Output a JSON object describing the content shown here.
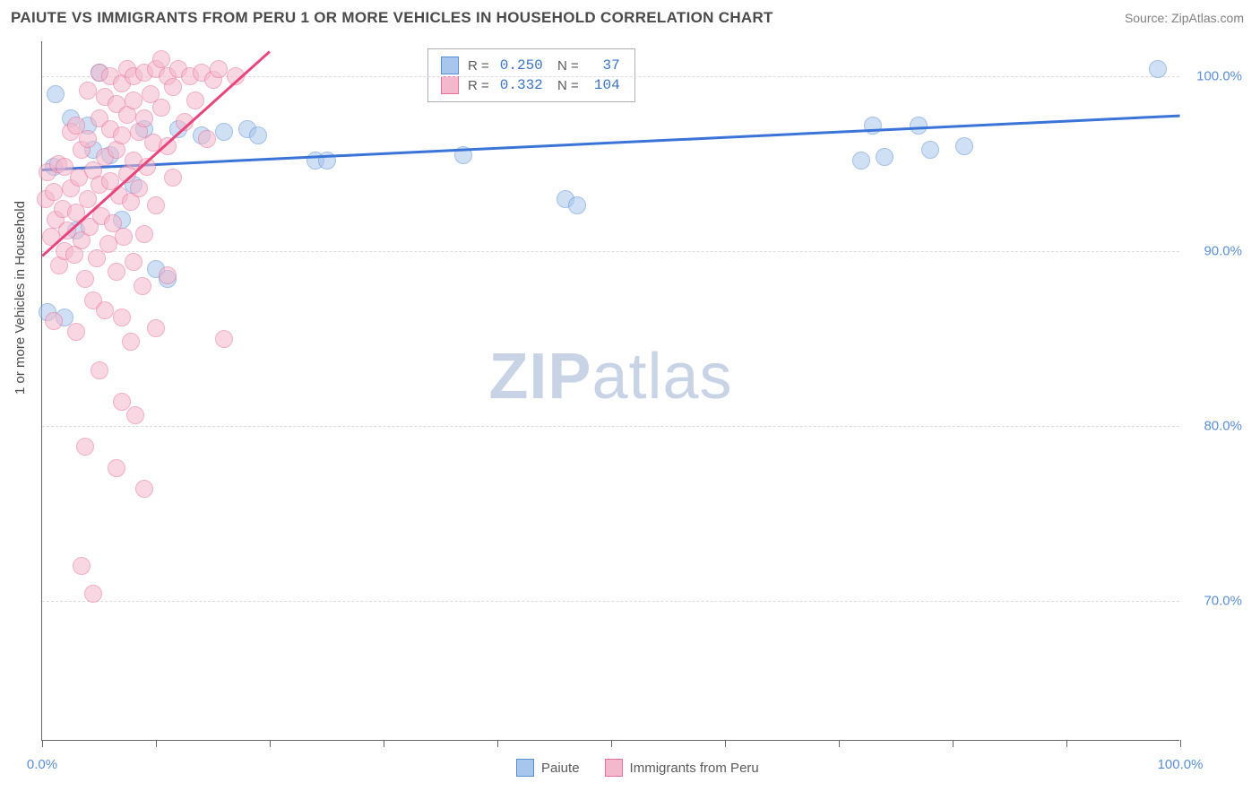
{
  "title": "PAIUTE VS IMMIGRANTS FROM PERU 1 OR MORE VEHICLES IN HOUSEHOLD CORRELATION CHART",
  "source": "Source: ZipAtlas.com",
  "watermark_prefix": "ZIP",
  "watermark_suffix": "atlas",
  "chart": {
    "type": "scatter",
    "ylabel": "1 or more Vehicles in Household",
    "background_color": "#ffffff",
    "grid_color": "#dcdcdc",
    "axis_color": "#666666",
    "xlim": [
      0,
      100
    ],
    "ylim": [
      62,
      102
    ],
    "ytick_positions": [
      70,
      80,
      90,
      100
    ],
    "ytick_labels": [
      "70.0%",
      "80.0%",
      "90.0%",
      "100.0%"
    ],
    "xtick_positions": [
      0,
      10,
      20,
      30,
      40,
      50,
      60,
      70,
      80,
      90,
      100
    ],
    "xtick_labels_shown": {
      "0": "0.0%",
      "100": "100.0%"
    },
    "marker_radius": 10,
    "marker_stroke_width": 1.8,
    "series": [
      {
        "name": "Paiute",
        "fill_color": "#a8c6ec",
        "stroke_color": "#5a8ed6",
        "fill_opacity": 0.55,
        "trend_color": "#3b74d8",
        "trend_width": 2.5,
        "stats": {
          "R": "0.250",
          "N": "37"
        },
        "trend": {
          "x1": 0,
          "y1": 94.7,
          "x2": 100,
          "y2": 97.8
        },
        "points": [
          [
            0.5,
            86.5
          ],
          [
            1,
            94.8
          ],
          [
            1.2,
            99.0
          ],
          [
            2,
            86.2
          ],
          [
            2.5,
            97.6
          ],
          [
            3,
            91.2
          ],
          [
            4,
            97.2
          ],
          [
            4.5,
            95.8
          ],
          [
            5,
            100.2
          ],
          [
            6,
            95.5
          ],
          [
            7,
            91.8
          ],
          [
            8,
            93.8
          ],
          [
            9,
            97.0
          ],
          [
            10,
            89.0
          ],
          [
            11,
            88.4
          ],
          [
            12,
            97.0
          ],
          [
            14,
            96.6
          ],
          [
            16,
            96.8
          ],
          [
            18,
            97.0
          ],
          [
            19,
            96.6
          ],
          [
            24,
            95.2
          ],
          [
            25,
            95.2
          ],
          [
            37,
            95.5
          ],
          [
            46,
            93.0
          ],
          [
            47,
            92.6
          ],
          [
            72,
            95.2
          ],
          [
            73,
            97.2
          ],
          [
            74,
            95.4
          ],
          [
            77,
            97.2
          ],
          [
            78,
            95.8
          ],
          [
            81,
            96.0
          ],
          [
            98,
            100.4
          ]
        ]
      },
      {
        "name": "Immigrants from Peru",
        "fill_color": "#f4b8cc",
        "stroke_color": "#e86f9a",
        "fill_opacity": 0.55,
        "trend_color": "#e8457a",
        "trend_width": 2.5,
        "stats": {
          "R": "0.332",
          "N": "104"
        },
        "trend": {
          "x1": 0,
          "y1": 89.8,
          "x2": 20,
          "y2": 101.5
        },
        "points": [
          [
            0.3,
            93.0
          ],
          [
            0.5,
            94.5
          ],
          [
            0.8,
            90.8
          ],
          [
            1,
            93.4
          ],
          [
            1,
            86.0
          ],
          [
            1.2,
            91.8
          ],
          [
            1.4,
            95.0
          ],
          [
            1.5,
            89.2
          ],
          [
            1.8,
            92.4
          ],
          [
            2,
            90.0
          ],
          [
            2,
            94.8
          ],
          [
            2.2,
            91.2
          ],
          [
            2.5,
            93.6
          ],
          [
            2.5,
            96.8
          ],
          [
            2.8,
            89.8
          ],
          [
            3,
            85.4
          ],
          [
            3,
            92.2
          ],
          [
            3,
            97.2
          ],
          [
            3.2,
            94.2
          ],
          [
            3.5,
            90.6
          ],
          [
            3.5,
            95.8
          ],
          [
            3.8,
            88.4
          ],
          [
            3.8,
            78.8
          ],
          [
            4,
            93.0
          ],
          [
            4,
            96.4
          ],
          [
            4,
            99.2
          ],
          [
            4.2,
            91.4
          ],
          [
            4.5,
            87.2
          ],
          [
            4.5,
            94.6
          ],
          [
            4.8,
            89.6
          ],
          [
            5,
            83.2
          ],
          [
            5,
            93.8
          ],
          [
            5,
            97.6
          ],
          [
            5,
            100.2
          ],
          [
            5.2,
            92.0
          ],
          [
            5.5,
            86.6
          ],
          [
            5.5,
            95.4
          ],
          [
            5.5,
            98.8
          ],
          [
            5.8,
            90.4
          ],
          [
            6,
            94.0
          ],
          [
            6,
            97.0
          ],
          [
            6,
            100.0
          ],
          [
            6.2,
            91.6
          ],
          [
            6.5,
            88.8
          ],
          [
            6.5,
            95.8
          ],
          [
            6.5,
            98.4
          ],
          [
            6.5,
            77.6
          ],
          [
            6.8,
            93.2
          ],
          [
            7,
            86.2
          ],
          [
            7,
            96.6
          ],
          [
            7,
            99.6
          ],
          [
            7,
            81.4
          ],
          [
            7.2,
            90.8
          ],
          [
            7.5,
            94.4
          ],
          [
            7.5,
            97.8
          ],
          [
            7.5,
            100.4
          ],
          [
            7.8,
            84.8
          ],
          [
            7.8,
            92.8
          ],
          [
            8,
            89.4
          ],
          [
            8,
            95.2
          ],
          [
            8,
            98.6
          ],
          [
            8,
            100.0
          ],
          [
            8.2,
            80.6
          ],
          [
            8.5,
            93.6
          ],
          [
            8.5,
            96.8
          ],
          [
            8.8,
            88.0
          ],
          [
            9,
            76.4
          ],
          [
            9,
            91.0
          ],
          [
            9,
            97.6
          ],
          [
            9,
            100.2
          ],
          [
            9.2,
            94.8
          ],
          [
            9.5,
            99.0
          ],
          [
            9.8,
            96.2
          ],
          [
            10,
            85.6
          ],
          [
            10,
            92.6
          ],
          [
            10,
            100.4
          ],
          [
            10.5,
            98.2
          ],
          [
            10.5,
            101.0
          ],
          [
            11,
            88.6
          ],
          [
            11,
            96.0
          ],
          [
            11,
            100.0
          ],
          [
            11.5,
            94.2
          ],
          [
            11.5,
            99.4
          ],
          [
            12,
            100.4
          ],
          [
            12.5,
            97.4
          ],
          [
            13,
            100.0
          ],
          [
            13.5,
            98.6
          ],
          [
            14,
            100.2
          ],
          [
            14.5,
            96.4
          ],
          [
            15,
            99.8
          ],
          [
            15.5,
            100.4
          ],
          [
            16,
            85.0
          ],
          [
            17,
            100.0
          ],
          [
            3.5,
            72.0
          ],
          [
            4.5,
            70.4
          ]
        ]
      }
    ]
  },
  "legend_bottom": [
    {
      "label": "Paiute",
      "fill": "#a8c6ec",
      "stroke": "#5a8ed6"
    },
    {
      "label": "Immigrants from Peru",
      "fill": "#f4b8cc",
      "stroke": "#e86f9a"
    }
  ]
}
